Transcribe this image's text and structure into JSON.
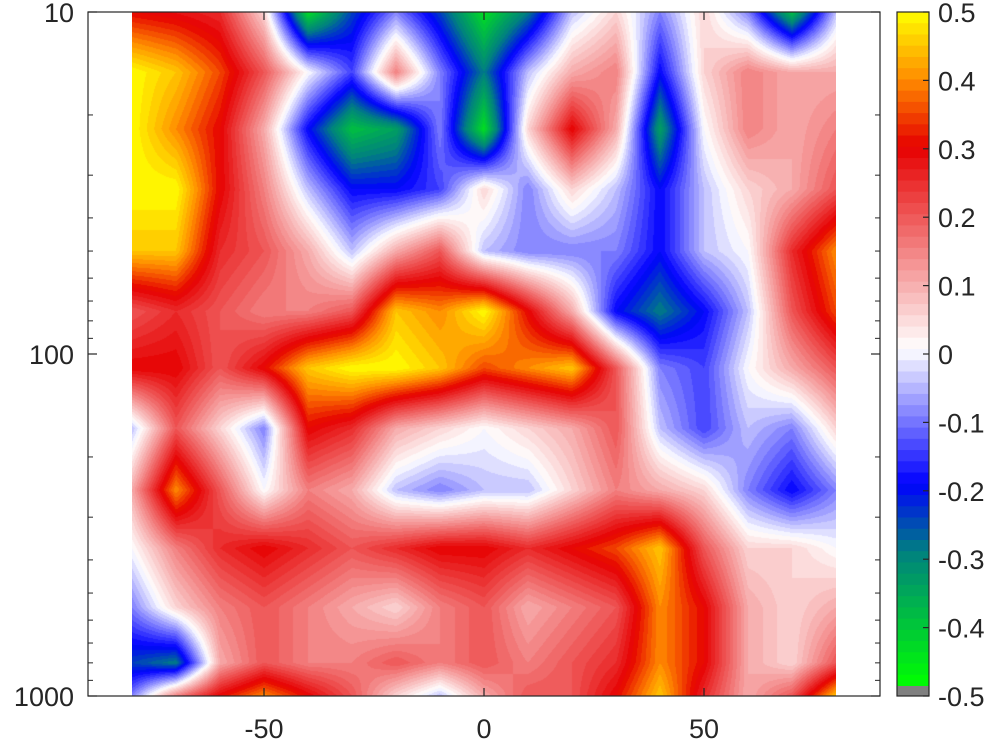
{
  "chart_data": {
    "type": "heatmap",
    "title": "",
    "xlabel": "",
    "ylabel": "",
    "x_axis": {
      "scale": "linear",
      "range": [
        -90,
        90
      ],
      "ticks": [
        -50,
        0,
        50
      ],
      "tick_labels": [
        "-50",
        "0",
        "50"
      ],
      "data_extent": [
        -80,
        80
      ]
    },
    "y_axis": {
      "scale": "log",
      "reversed": true,
      "range": [
        10,
        1000
      ],
      "ticks": [
        10,
        100,
        1000
      ],
      "tick_labels": [
        "10",
        "100",
        "1000"
      ]
    },
    "colorbar": {
      "position": "right",
      "range": [
        -0.5,
        0.5
      ],
      "ticks": [
        0.5,
        0.4,
        0.3,
        0.2,
        0.1,
        0,
        -0.1,
        -0.2,
        -0.3,
        -0.4,
        -0.5
      ],
      "tick_labels": [
        "0.5",
        "0.4",
        "0.3",
        "0.2",
        "0.1",
        "0",
        "-0.1",
        "-0.2",
        "-0.3",
        "-0.4",
        "-0.5"
      ],
      "colors": {
        "max": "#ffff00",
        "high": "#ff8c00",
        "mid_high": "#e60000",
        "low_pos": "#ffffff",
        "low_neg": "#0000ff",
        "mid_neg": "#008080",
        "min": "#00ff00",
        "under": "#808080"
      }
    },
    "grid": false,
    "x": [
      -80,
      -70,
      -60,
      -50,
      -40,
      -30,
      -20,
      -10,
      0,
      10,
      20,
      30,
      40,
      50,
      60,
      70,
      80
    ],
    "y": [
      10,
      15,
      22,
      33,
      50,
      75,
      110,
      165,
      250,
      370,
      550,
      800,
      1000
    ],
    "z": [
      [
        0.3,
        0.28,
        0.25,
        0.05,
        -0.45,
        -0.25,
        -0.1,
        -0.25,
        -0.45,
        -0.3,
        -0.05,
        0.05,
        -0.1,
        0.05,
        -0.1,
        -0.4,
        -0.05
      ],
      [
        0.5,
        0.45,
        0.35,
        0.2,
        0.0,
        -0.15,
        0.15,
        -0.1,
        -0.3,
        -0.05,
        0.1,
        0.15,
        -0.2,
        0.05,
        0.15,
        0.1,
        0.1
      ],
      [
        0.5,
        0.4,
        0.3,
        0.1,
        -0.2,
        -0.4,
        -0.35,
        -0.1,
        -0.45,
        0.05,
        0.3,
        0.1,
        -0.35,
        0.0,
        0.15,
        0.1,
        0.15
      ],
      [
        0.5,
        0.5,
        0.3,
        0.15,
        -0.05,
        -0.2,
        -0.2,
        -0.15,
        0.05,
        -0.1,
        0.05,
        -0.05,
        -0.2,
        -0.05,
        0.05,
        0.1,
        0.2
      ],
      [
        0.45,
        0.45,
        0.25,
        0.2,
        0.1,
        -0.05,
        0.1,
        0.2,
        -0.05,
        -0.1,
        -0.1,
        -0.1,
        -0.2,
        -0.05,
        0.0,
        0.25,
        0.4
      ],
      [
        0.2,
        0.25,
        0.2,
        0.15,
        0.15,
        0.2,
        0.45,
        0.4,
        0.5,
        0.3,
        0.1,
        -0.2,
        -0.3,
        -0.2,
        -0.05,
        0.2,
        0.35
      ],
      [
        0.3,
        0.3,
        0.2,
        0.3,
        0.45,
        0.5,
        0.5,
        0.45,
        0.35,
        0.4,
        0.45,
        0.2,
        -0.1,
        -0.15,
        0.0,
        0.1,
        0.2
      ],
      [
        -0.05,
        0.2,
        0.05,
        -0.1,
        0.3,
        0.25,
        0.1,
        0.05,
        0.0,
        0.05,
        0.1,
        0.2,
        -0.05,
        -0.15,
        -0.05,
        -0.1,
        0.05
      ],
      [
        0.1,
        0.4,
        0.2,
        0.0,
        0.15,
        0.1,
        -0.05,
        -0.1,
        -0.05,
        -0.05,
        0.05,
        0.15,
        0.1,
        0.05,
        -0.1,
        -0.2,
        -0.1
      ],
      [
        0.0,
        0.15,
        0.25,
        0.3,
        0.25,
        0.2,
        0.25,
        0.3,
        0.3,
        0.25,
        0.3,
        0.35,
        0.45,
        0.2,
        0.05,
        0.05,
        0.0
      ],
      [
        -0.1,
        0.05,
        0.15,
        0.2,
        0.15,
        0.1,
        0.05,
        0.15,
        0.2,
        0.1,
        0.15,
        0.2,
        0.4,
        0.3,
        0.1,
        0.05,
        0.1
      ],
      [
        -0.25,
        -0.3,
        0.1,
        0.2,
        0.15,
        0.15,
        0.2,
        0.15,
        0.2,
        0.15,
        0.2,
        0.25,
        0.4,
        0.3,
        0.1,
        0.05,
        0.2
      ],
      [
        -0.1,
        0.15,
        0.3,
        0.4,
        0.3,
        0.2,
        0.05,
        -0.05,
        0.1,
        0.2,
        0.2,
        0.3,
        0.45,
        0.25,
        0.1,
        0.2,
        0.45
      ]
    ]
  }
}
